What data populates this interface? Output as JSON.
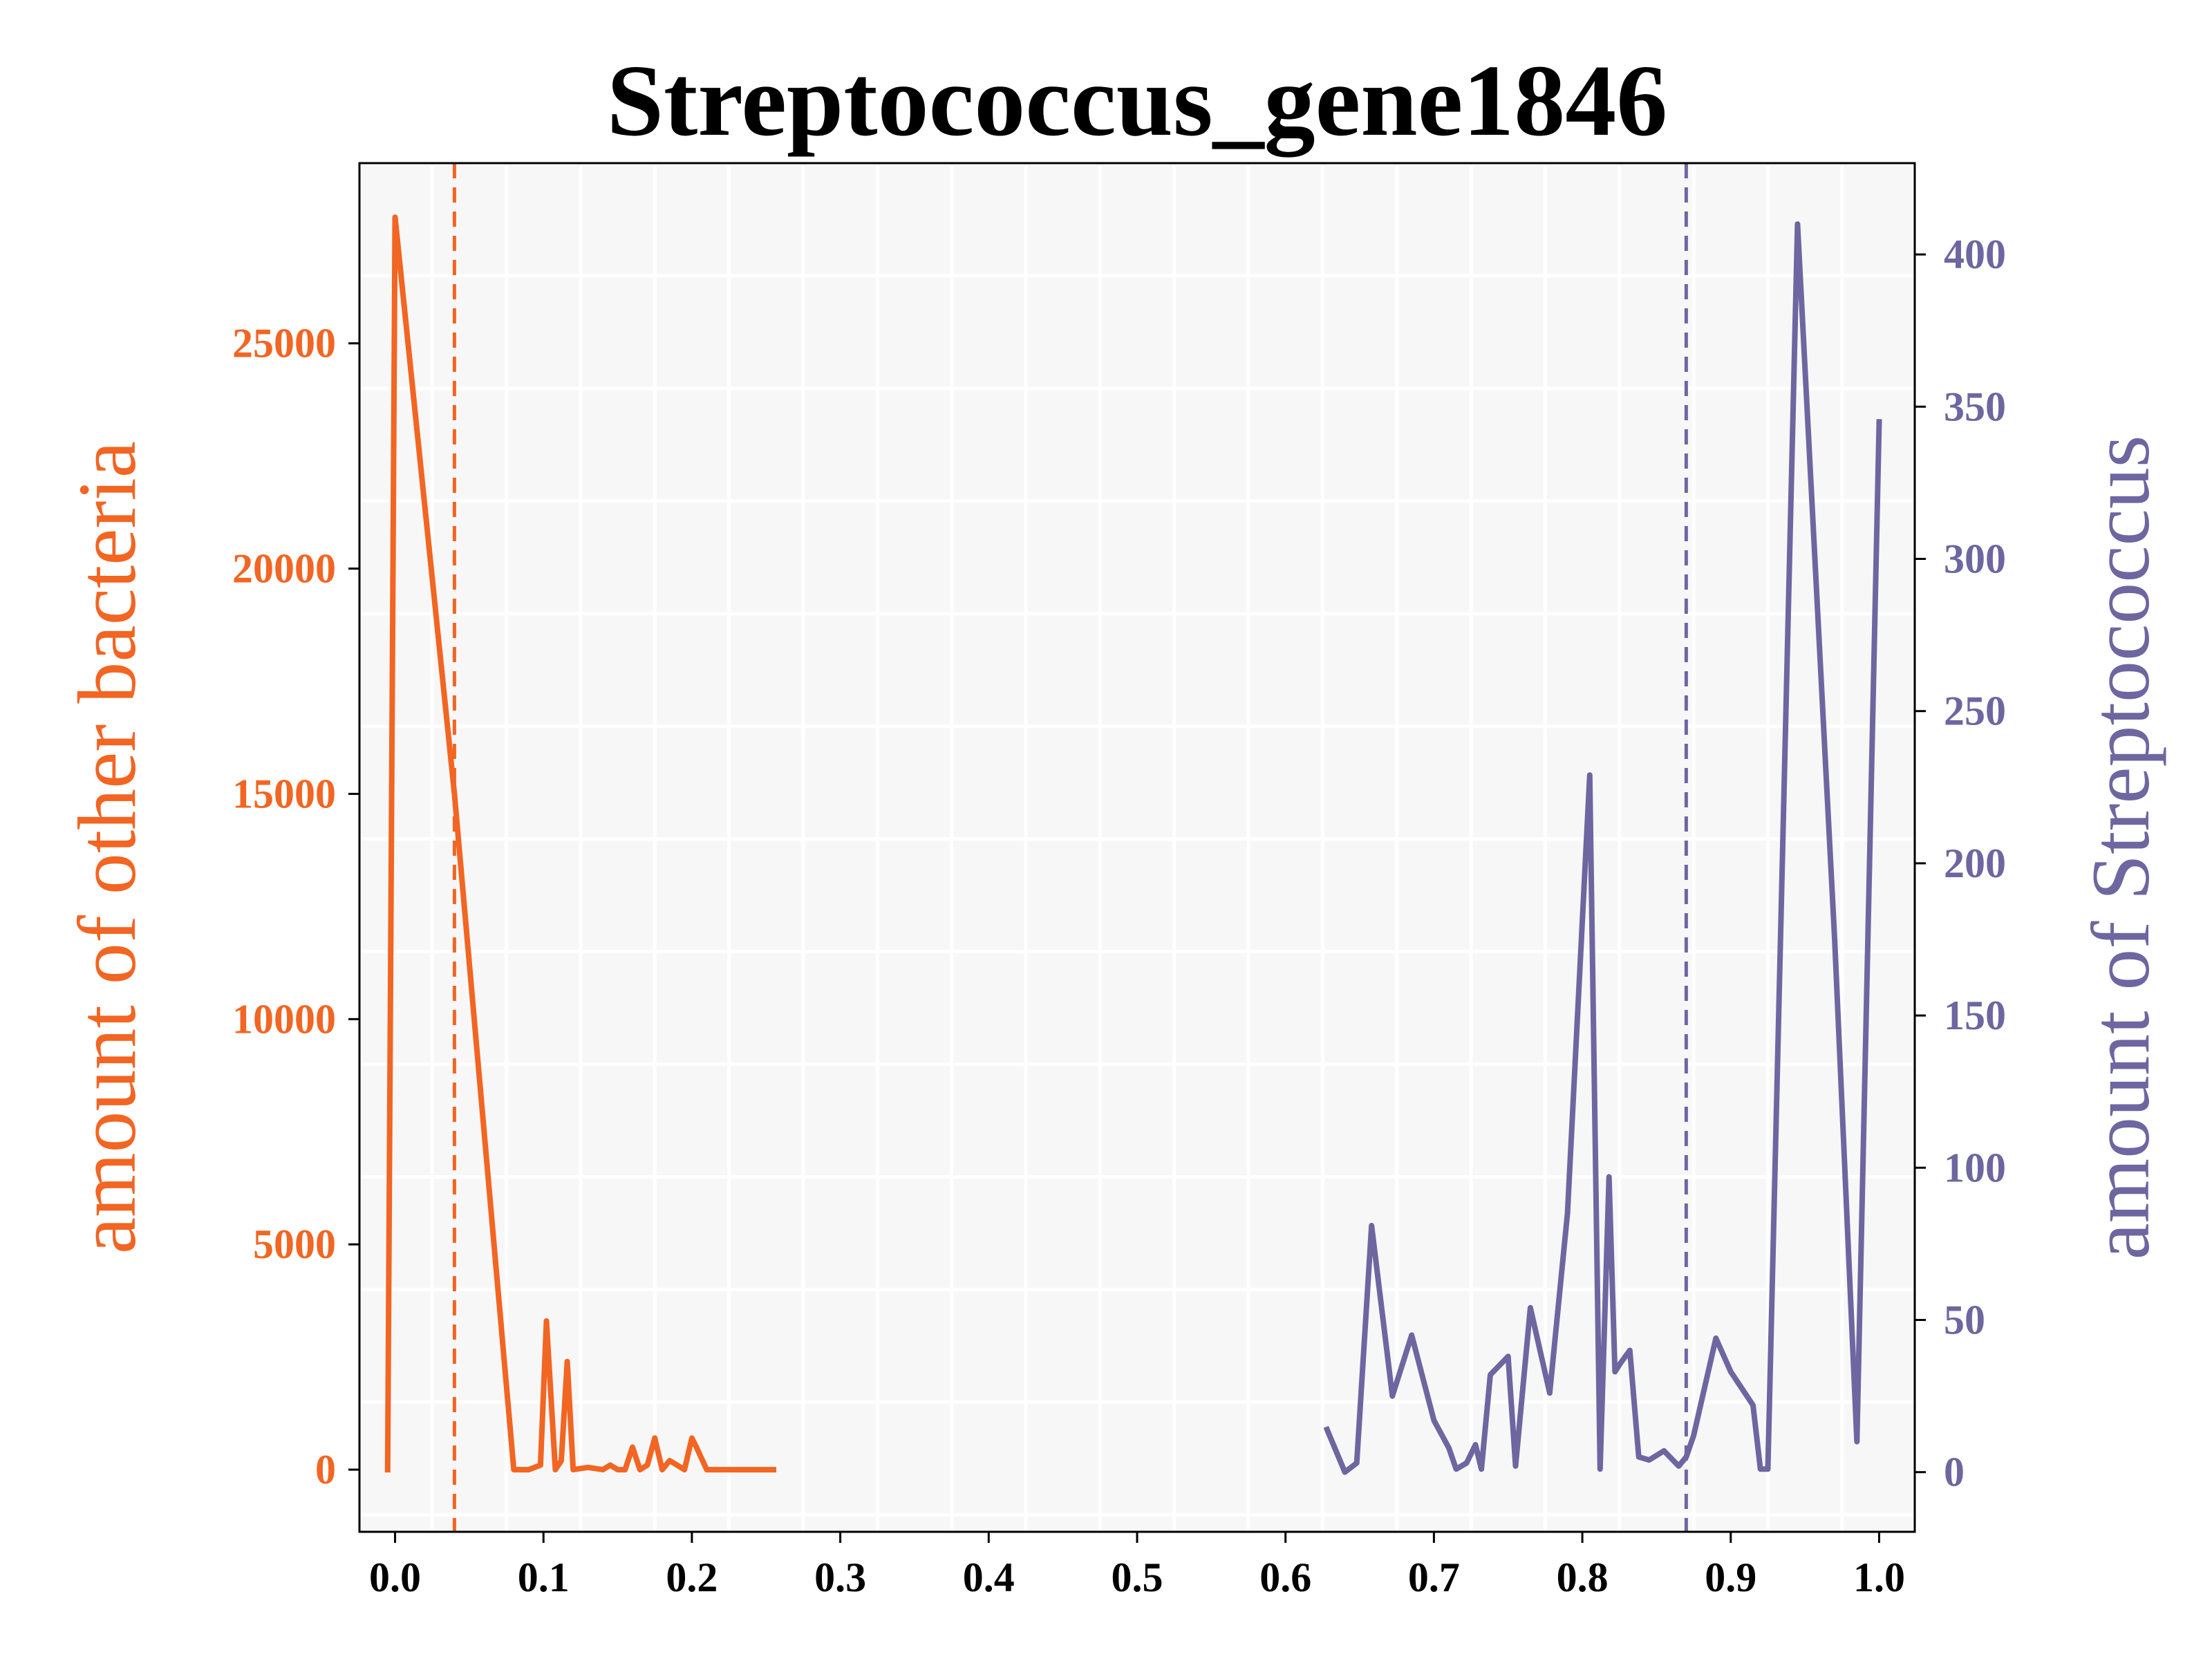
{
  "chart_data": {
    "type": "line",
    "title": "Streptococcus_gene1846",
    "xlabel": "",
    "xlim": [
      -0.024,
      1.024
    ],
    "x_ticks": [
      "0.0",
      "0.1",
      "0.2",
      "0.3",
      "0.4",
      "0.5",
      "0.6",
      "0.7",
      "0.8",
      "0.9",
      "1.0"
    ],
    "x_tick_values": [
      0.0,
      0.1,
      0.2,
      0.3,
      0.4,
      0.5,
      0.6,
      0.7,
      0.8,
      0.9,
      1.0
    ],
    "grid": true,
    "left_axis": {
      "label": "amount of other bacteria",
      "color": "#f26522",
      "ylim": [
        -1380,
        29000
      ],
      "ticks": [
        "0",
        "5000",
        "10000",
        "15000",
        "20000",
        "25000"
      ],
      "tick_values": [
        0,
        5000,
        10000,
        15000,
        20000,
        25000
      ]
    },
    "right_axis": {
      "label": "amount of Streptococcus",
      "color": "#6e66a0",
      "ylim": [
        -19.6,
        430
      ],
      "ticks": [
        "0",
        "50",
        "100",
        "150",
        "200",
        "250",
        "300",
        "350",
        "400"
      ],
      "tick_values": [
        0,
        50,
        100,
        150,
        200,
        250,
        300,
        350,
        400
      ]
    },
    "series": [
      {
        "axis": "left",
        "color": "#f26522",
        "x": [
          -0.005,
          0.0,
          0.04,
          0.08,
          0.09,
          0.098,
          0.102,
          0.108,
          0.112,
          0.116,
          0.12,
          0.13,
          0.14,
          0.145,
          0.15,
          0.155,
          0.16,
          0.165,
          0.17,
          0.175,
          0.18,
          0.185,
          0.19,
          0.195,
          0.2,
          0.203,
          0.21,
          0.22,
          0.23,
          0.24,
          0.255
        ],
        "values": [
          0,
          27800,
          15000,
          0,
          0,
          100,
          3300,
          0,
          200,
          2400,
          0,
          50,
          0,
          100,
          0,
          0,
          500,
          0,
          100,
          700,
          0,
          200,
          100,
          0,
          700,
          500,
          0,
          0,
          0,
          0,
          0
        ]
      },
      {
        "axis": "right",
        "color": "#6e66a0",
        "x": [
          0.628,
          0.64,
          0.648,
          0.658,
          0.672,
          0.685,
          0.7,
          0.71,
          0.715,
          0.722,
          0.728,
          0.732,
          0.738,
          0.75,
          0.755,
          0.765,
          0.778,
          0.79,
          0.805,
          0.812,
          0.818,
          0.822,
          0.826,
          0.832,
          0.838,
          0.845,
          0.855,
          0.865,
          0.87,
          0.875,
          0.89,
          0.9,
          0.915,
          0.92,
          0.925,
          0.945,
          0.97,
          0.985,
          1.0
        ],
        "values": [
          14,
          0,
          3,
          81,
          25,
          45,
          17,
          8,
          1,
          3,
          9,
          1,
          32,
          38,
          2,
          54,
          26,
          85,
          229,
          1,
          97,
          33,
          36,
          40,
          5,
          4,
          7,
          2,
          5,
          12,
          44,
          33,
          22,
          1,
          1,
          410,
          175,
          10,
          345
        ]
      }
    ],
    "reference_lines": [
      {
        "axis": "left",
        "x": 0.04,
        "color": "#f26522",
        "style": "dashed"
      },
      {
        "axis": "right",
        "x": 0.87,
        "color": "#6e66a0",
        "style": "dashed"
      }
    ]
  }
}
